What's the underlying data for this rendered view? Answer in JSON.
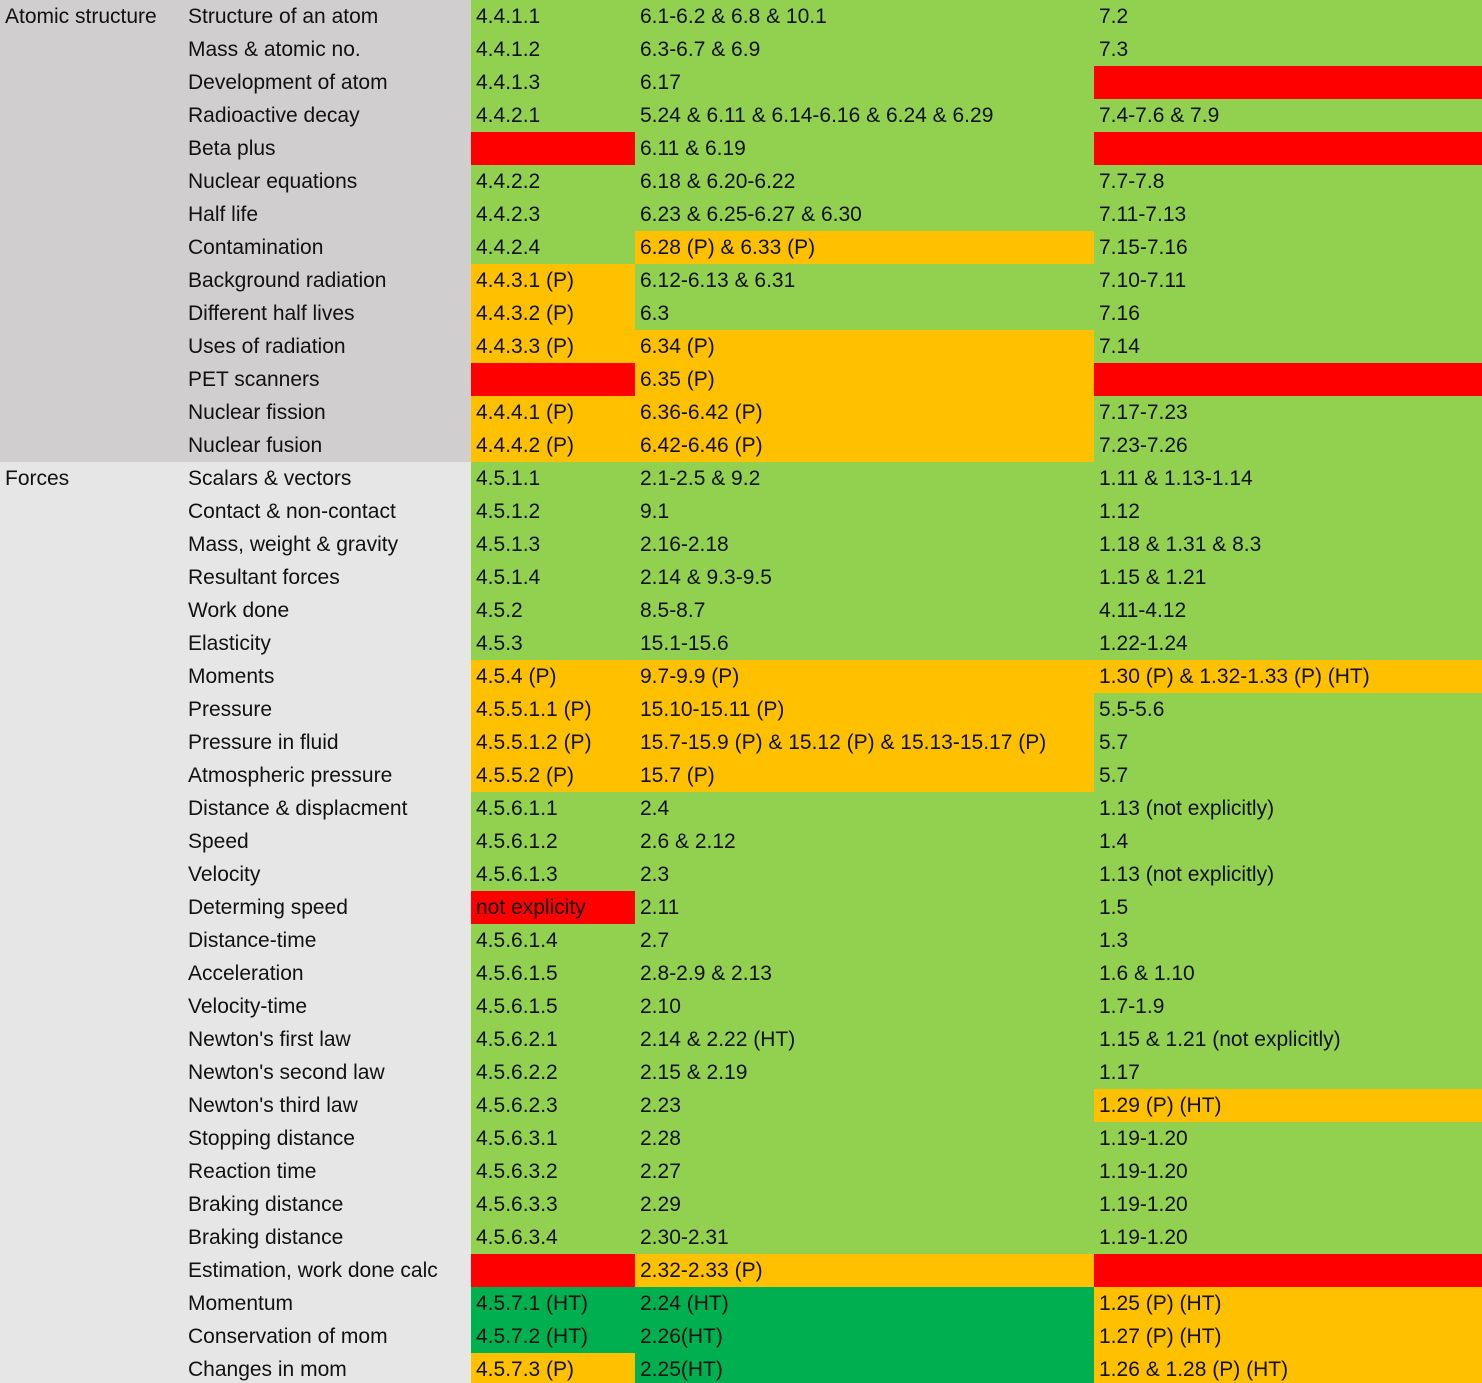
{
  "groups": [
    {
      "name": "Atomic structure",
      "color": "#d0cece",
      "rows": [
        {
          "topic": "Structure of an atom",
          "cells": [
            {
              "text": "4.4.1.1",
              "color": "#92d050"
            },
            {
              "text": "6.1-6.2 & 6.8 & 10.1",
              "color": "#92d050"
            },
            {
              "text": "7.2",
              "color": "#92d050"
            }
          ]
        },
        {
          "topic": "Mass & atomic no.",
          "cells": [
            {
              "text": "4.4.1.2",
              "color": "#92d050"
            },
            {
              "text": "6.3-6.7 & 6.9",
              "color": "#92d050"
            },
            {
              "text": "7.3",
              "color": "#92d050"
            }
          ]
        },
        {
          "topic": "Development of atom",
          "cells": [
            {
              "text": "4.4.1.3",
              "color": "#92d050"
            },
            {
              "text": "6.17",
              "color": "#92d050"
            },
            {
              "color": "#ff0000"
            }
          ]
        },
        {
          "topic": "Radioactive decay",
          "cells": [
            {
              "text": "4.4.2.1",
              "color": "#92d050"
            },
            {
              "text": "5.24 & 6.11 & 6.14-6.16 & 6.24 & 6.29",
              "color": "#92d050"
            },
            {
              "text": "7.4-7.6 & 7.9",
              "color": "#92d050"
            }
          ]
        },
        {
          "topic": "Beta plus",
          "cells": [
            {
              "color": "#ff0000"
            },
            {
              "text": "6.11 & 6.19",
              "color": "#92d050"
            },
            {
              "color": "#ff0000"
            }
          ]
        },
        {
          "topic": "Nuclear equations",
          "cells": [
            {
              "text": "4.4.2.2",
              "color": "#92d050"
            },
            {
              "text": "6.18 & 6.20-6.22",
              "color": "#92d050"
            },
            {
              "text": "7.7-7.8",
              "color": "#92d050"
            }
          ]
        },
        {
          "topic": "Half life",
          "cells": [
            {
              "text": "4.4.2.3",
              "color": "#92d050"
            },
            {
              "text": "6.23 & 6.25-6.27 & 6.30",
              "color": "#92d050"
            },
            {
              "text": "7.11-7.13",
              "color": "#92d050"
            }
          ]
        },
        {
          "topic": "Contamination",
          "cells": [
            {
              "text": "4.4.2.4",
              "color": "#92d050"
            },
            {
              "text": "6.28 (P) & 6.33 (P)",
              "color": "#ffc000"
            },
            {
              "text": "7.15-7.16",
              "color": "#92d050"
            }
          ]
        },
        {
          "topic": "Background radiation",
          "cells": [
            {
              "text": "4.4.3.1 (P)",
              "color": "#ffc000"
            },
            {
              "text": "6.12-6.13 & 6.31",
              "color": "#92d050"
            },
            {
              "text": "7.10-7.11",
              "color": "#92d050"
            }
          ]
        },
        {
          "topic": "Different half lives",
          "cells": [
            {
              "text": "4.4.3.2 (P)",
              "color": "#ffc000"
            },
            {
              "text": "6.3",
              "color": "#92d050"
            },
            {
              "text": "7.16",
              "color": "#92d050"
            }
          ]
        },
        {
          "topic": "Uses of radiation",
          "cells": [
            {
              "text": "4.4.3.3 (P)",
              "color": "#ffc000"
            },
            {
              "text": "6.34 (P)",
              "color": "#ffc000"
            },
            {
              "text": "7.14",
              "color": "#92d050"
            }
          ]
        },
        {
          "topic": "PET scanners",
          "cells": [
            {
              "color": "#ff0000"
            },
            {
              "text": "6.35 (P)",
              "color": "#ffc000"
            },
            {
              "color": "#ff0000"
            }
          ]
        },
        {
          "topic": "Nuclear fission",
          "cells": [
            {
              "text": "4.4.4.1 (P)",
              "color": "#ffc000"
            },
            {
              "text": "6.36-6.42 (P)",
              "color": "#ffc000"
            },
            {
              "text": "7.17-7.23",
              "color": "#92d050"
            }
          ]
        },
        {
          "topic": "Nuclear fusion",
          "cells": [
            {
              "text": "4.4.4.2 (P)",
              "color": "#ffc000"
            },
            {
              "text": "6.42-6.46 (P)",
              "color": "#ffc000"
            },
            {
              "text": "7.23-7.26",
              "color": "#92d050"
            }
          ]
        }
      ]
    },
    {
      "name": "Forces",
      "color": "#e7e6e6",
      "rows": [
        {
          "topic": "Scalars & vectors",
          "cells": [
            {
              "text": "4.5.1.1",
              "color": "#92d050"
            },
            {
              "text": "2.1-2.5 & 9.2",
              "color": "#92d050"
            },
            {
              "text": "1.11 & 1.13-1.14",
              "color": "#92d050"
            }
          ]
        },
        {
          "topic": "Contact & non-contact",
          "cells": [
            {
              "text": "4.5.1.2",
              "color": "#92d050"
            },
            {
              "text": "9.1",
              "color": "#92d050"
            },
            {
              "text": "1.12",
              "color": "#92d050"
            }
          ]
        },
        {
          "topic": "Mass, weight & gravity",
          "cells": [
            {
              "text": "4.5.1.3",
              "color": "#92d050"
            },
            {
              "text": "2.16-2.18",
              "color": "#92d050"
            },
            {
              "text": "1.18 & 1.31 & 8.3",
              "color": "#92d050"
            }
          ]
        },
        {
          "topic": "Resultant forces",
          "cells": [
            {
              "text": "4.5.1.4",
              "color": "#92d050"
            },
            {
              "text": "2.14 & 9.3-9.5",
              "color": "#92d050"
            },
            {
              "text": "1.15 & 1.21",
              "color": "#92d050"
            }
          ]
        },
        {
          "topic": "Work done",
          "cells": [
            {
              "text": "4.5.2",
              "color": "#92d050"
            },
            {
              "text": "8.5-8.7",
              "color": "#92d050"
            },
            {
              "text": "4.11-4.12",
              "color": "#92d050"
            }
          ]
        },
        {
          "topic": "Elasticity",
          "cells": [
            {
              "text": "4.5.3",
              "color": "#92d050"
            },
            {
              "text": "15.1-15.6",
              "color": "#92d050"
            },
            {
              "text": "1.22-1.24",
              "color": "#92d050"
            }
          ]
        },
        {
          "topic": "Moments",
          "cells": [
            {
              "text": "4.5.4 (P)",
              "color": "#ffc000"
            },
            {
              "text": "9.7-9.9 (P)",
              "color": "#ffc000"
            },
            {
              "text": "1.30 (P) & 1.32-1.33 (P) (HT)",
              "color": "#ffc000"
            }
          ]
        },
        {
          "topic": "Pressure",
          "cells": [
            {
              "text": "4.5.5.1.1 (P)",
              "color": "#ffc000"
            },
            {
              "text": "15.10-15.11 (P)",
              "color": "#ffc000"
            },
            {
              "text": "5.5-5.6",
              "color": "#92d050"
            }
          ]
        },
        {
          "topic": "Pressure in fluid",
          "cells": [
            {
              "text": "4.5.5.1.2 (P)",
              "color": "#ffc000"
            },
            {
              "text": "15.7-15.9 (P) & 15.12 (P) & 15.13-15.17 (P)",
              "color": "#ffc000"
            },
            {
              "text": "5.7",
              "color": "#92d050"
            }
          ]
        },
        {
          "topic": "Atmospheric pressure",
          "cells": [
            {
              "text": "4.5.5.2 (P)",
              "color": "#ffc000"
            },
            {
              "text": "15.7 (P)",
              "color": "#ffc000"
            },
            {
              "text": "5.7",
              "color": "#92d050"
            }
          ]
        },
        {
          "topic": "Distance & displacment",
          "cells": [
            {
              "text": "4.5.6.1.1",
              "color": "#92d050"
            },
            {
              "text": "2.4",
              "color": "#92d050"
            },
            {
              "text": "1.13 (not explicitly)",
              "color": "#92d050"
            }
          ]
        },
        {
          "topic": "Speed",
          "cells": [
            {
              "text": "4.5.6.1.2",
              "color": "#92d050"
            },
            {
              "text": "2.6 & 2.12",
              "color": "#92d050"
            },
            {
              "text": "1.4",
              "color": "#92d050"
            }
          ]
        },
        {
          "topic": "Velocity",
          "cells": [
            {
              "text": "4.5.6.1.3",
              "color": "#92d050"
            },
            {
              "text": "2.3",
              "color": "#92d050"
            },
            {
              "text": "1.13 (not explicitly)",
              "color": "#92d050"
            }
          ]
        },
        {
          "topic": "Determing speed",
          "cells": [
            {
              "text": "not explicity",
              "color": "#ff0000"
            },
            {
              "text": "2.11",
              "color": "#92d050"
            },
            {
              "text": "1.5",
              "color": "#92d050"
            }
          ]
        },
        {
          "topic": "Distance-time",
          "cells": [
            {
              "text": "4.5.6.1.4",
              "color": "#92d050"
            },
            {
              "text": "2.7",
              "color": "#92d050"
            },
            {
              "text": "1.3",
              "color": "#92d050"
            }
          ]
        },
        {
          "topic": "Acceleration",
          "cells": [
            {
              "text": "4.5.6.1.5",
              "color": "#92d050"
            },
            {
              "text": "2.8-2.9 & 2.13",
              "color": "#92d050"
            },
            {
              "text": "1.6 & 1.10",
              "color": "#92d050"
            }
          ]
        },
        {
          "topic": "Velocity-time",
          "cells": [
            {
              "text": "4.5.6.1.5",
              "color": "#92d050"
            },
            {
              "text": "2.10",
              "color": "#92d050"
            },
            {
              "text": "1.7-1.9",
              "color": "#92d050"
            }
          ]
        },
        {
          "topic": "Newton's first law",
          "cells": [
            {
              "text": "4.5.6.2.1",
              "color": "#92d050"
            },
            {
              "text": "2.14 & 2.22 (HT)",
              "color": "#92d050"
            },
            {
              "text": "1.15 & 1.21 (not explicitly)",
              "color": "#92d050"
            }
          ]
        },
        {
          "topic": "Newton's second law",
          "cells": [
            {
              "text": "4.5.6.2.2",
              "color": "#92d050"
            },
            {
              "text": "2.15 & 2.19",
              "color": "#92d050"
            },
            {
              "text": "1.17",
              "color": "#92d050"
            }
          ]
        },
        {
          "topic": "Newton's third law",
          "cells": [
            {
              "text": "4.5.6.2.3",
              "color": "#92d050"
            },
            {
              "text": "2.23",
              "color": "#92d050"
            },
            {
              "text": "1.29 (P) (HT)",
              "color": "#ffc000"
            }
          ]
        },
        {
          "topic": "Stopping distance",
          "cells": [
            {
              "text": "4.5.6.3.1",
              "color": "#92d050"
            },
            {
              "text": "2.28",
              "color": "#92d050"
            },
            {
              "text": "1.19-1.20",
              "color": "#92d050"
            }
          ]
        },
        {
          "topic": "Reaction time",
          "cells": [
            {
              "text": "4.5.6.3.2",
              "color": "#92d050"
            },
            {
              "text": "2.27",
              "color": "#92d050"
            },
            {
              "text": "1.19-1.20",
              "color": "#92d050"
            }
          ]
        },
        {
          "topic": "Braking distance",
          "cells": [
            {
              "text": "4.5.6.3.3",
              "color": "#92d050"
            },
            {
              "text": "2.29",
              "color": "#92d050"
            },
            {
              "text": "1.19-1.20",
              "color": "#92d050"
            }
          ]
        },
        {
          "topic": "Braking distance",
          "cells": [
            {
              "text": "4.5.6.3.4",
              "color": "#92d050"
            },
            {
              "text": "2.30-2.31",
              "color": "#92d050"
            },
            {
              "text": "1.19-1.20",
              "color": "#92d050"
            }
          ]
        },
        {
          "topic": "Estimation, work done calc",
          "cells": [
            {
              "color": "#ff0000"
            },
            {
              "text": "2.32-2.33 (P)",
              "color": "#ffc000"
            },
            {
              "color": "#ff0000"
            }
          ]
        },
        {
          "topic": "Momentum",
          "cells": [
            {
              "text": "4.5.7.1 (HT)",
              "color": "#00b050"
            },
            {
              "text": "2.24 (HT)",
              "color": "#00b050"
            },
            {
              "text": "1.25 (P) (HT)",
              "color": "#ffc000"
            }
          ]
        },
        {
          "topic": "Conservation of mom",
          "cells": [
            {
              "text": "4.5.7.2 (HT)",
              "color": "#00b050"
            },
            {
              "text": "2.26(HT)",
              "color": "#00b050"
            },
            {
              "text": "1.27 (P) (HT)",
              "color": "#ffc000"
            }
          ]
        },
        {
          "topic": "Changes in mom",
          "cells": [
            {
              "text": "4.5.7.3 (P)",
              "color": "#ffc000"
            },
            {
              "text": "2.25(HT)",
              "color": "#00b050"
            },
            {
              "text": "1.26 & 1.28 (P) (HT)",
              "color": "#ffc000"
            }
          ]
        }
      ]
    }
  ]
}
